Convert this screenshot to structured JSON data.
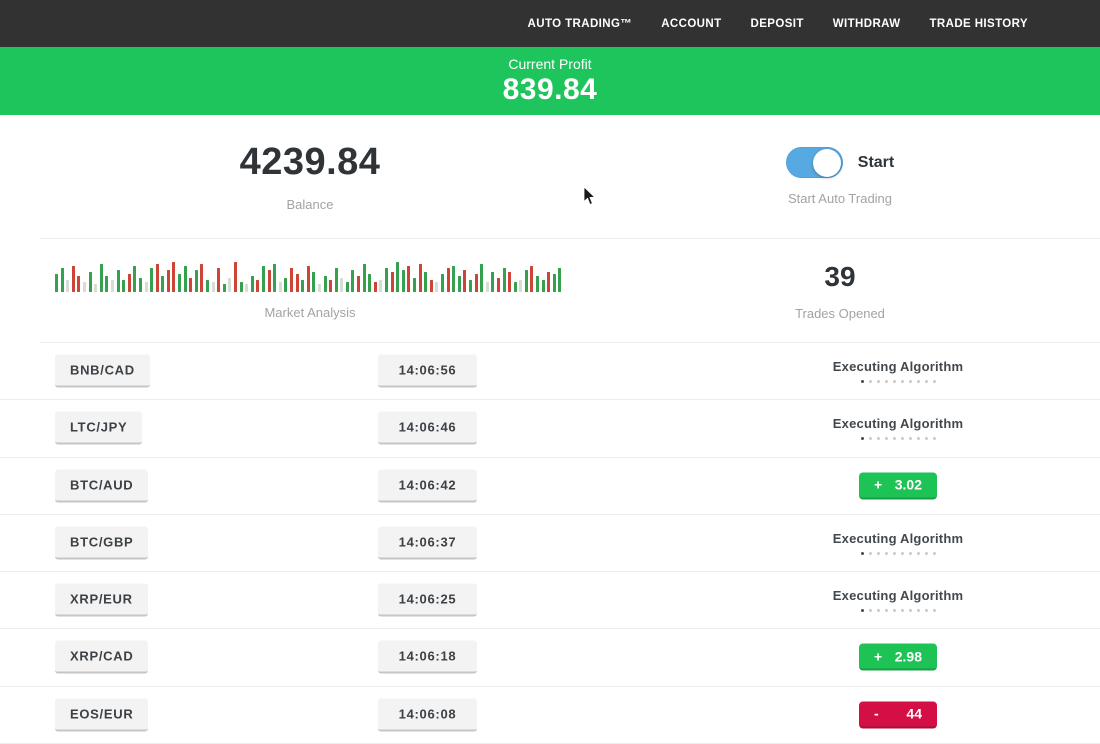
{
  "nav": {
    "items": [
      "AUTO TRADING™",
      "ACCOUNT",
      "DEPOSIT",
      "WITHDRAW",
      "TRADE HISTORY"
    ]
  },
  "profit_banner": {
    "label": "Current Profit",
    "value": "839.84"
  },
  "stats": {
    "balance": {
      "value": "4239.84",
      "label": "Balance"
    },
    "auto_trading": {
      "toggle_state": "on",
      "toggle_label": "Start",
      "caption": "Start Auto Trading"
    },
    "market": {
      "label": "Market Analysis"
    },
    "trades_opened": {
      "value": "39",
      "label": "Trades Opened"
    }
  },
  "market_analysis_bars": [
    [
      18,
      "g"
    ],
    [
      24,
      "g"
    ],
    [
      12,
      "p"
    ],
    [
      26,
      "r"
    ],
    [
      16,
      "r"
    ],
    [
      10,
      "p"
    ],
    [
      20,
      "g"
    ],
    [
      8,
      "p"
    ],
    [
      28,
      "g"
    ],
    [
      16,
      "g"
    ],
    [
      12,
      "p"
    ],
    [
      22,
      "g"
    ],
    [
      12,
      "g"
    ],
    [
      18,
      "r"
    ],
    [
      26,
      "g"
    ],
    [
      14,
      "g"
    ],
    [
      10,
      "p"
    ],
    [
      24,
      "g"
    ],
    [
      28,
      "r"
    ],
    [
      16,
      "g"
    ],
    [
      22,
      "r"
    ],
    [
      30,
      "r"
    ],
    [
      18,
      "g"
    ],
    [
      26,
      "g"
    ],
    [
      14,
      "r"
    ],
    [
      22,
      "g"
    ],
    [
      28,
      "r"
    ],
    [
      12,
      "g"
    ],
    [
      10,
      "p"
    ],
    [
      24,
      "r"
    ],
    [
      8,
      "g"
    ],
    [
      14,
      "p"
    ],
    [
      30,
      "r"
    ],
    [
      10,
      "g"
    ],
    [
      8,
      "p"
    ],
    [
      16,
      "g"
    ],
    [
      12,
      "r"
    ],
    [
      26,
      "g"
    ],
    [
      22,
      "r"
    ],
    [
      28,
      "g"
    ],
    [
      10,
      "p"
    ],
    [
      14,
      "g"
    ],
    [
      24,
      "r"
    ],
    [
      18,
      "r"
    ],
    [
      12,
      "g"
    ],
    [
      26,
      "r"
    ],
    [
      20,
      "g"
    ],
    [
      8,
      "p"
    ],
    [
      16,
      "g"
    ],
    [
      12,
      "r"
    ],
    [
      24,
      "g"
    ],
    [
      14,
      "p"
    ],
    [
      10,
      "g"
    ],
    [
      22,
      "g"
    ],
    [
      16,
      "r"
    ],
    [
      28,
      "g"
    ],
    [
      18,
      "g"
    ],
    [
      10,
      "r"
    ],
    [
      12,
      "p"
    ],
    [
      24,
      "g"
    ],
    [
      20,
      "r"
    ],
    [
      30,
      "g"
    ],
    [
      22,
      "g"
    ],
    [
      26,
      "r"
    ],
    [
      14,
      "g"
    ],
    [
      28,
      "r"
    ],
    [
      20,
      "g"
    ],
    [
      12,
      "r"
    ],
    [
      10,
      "p"
    ],
    [
      18,
      "g"
    ],
    [
      24,
      "r"
    ],
    [
      26,
      "g"
    ],
    [
      16,
      "g"
    ],
    [
      22,
      "r"
    ],
    [
      12,
      "g"
    ],
    [
      18,
      "r"
    ],
    [
      28,
      "g"
    ],
    [
      10,
      "p"
    ],
    [
      20,
      "g"
    ],
    [
      14,
      "r"
    ],
    [
      24,
      "g"
    ],
    [
      20,
      "r"
    ],
    [
      10,
      "g"
    ],
    [
      12,
      "p"
    ],
    [
      22,
      "g"
    ],
    [
      26,
      "r"
    ],
    [
      16,
      "g"
    ],
    [
      12,
      "g"
    ],
    [
      20,
      "r"
    ],
    [
      18,
      "g"
    ],
    [
      24,
      "g"
    ]
  ],
  "trades": {
    "executing_label": "Executing Algorithm",
    "status_dots": 10,
    "rows": [
      {
        "pair": "BNB/CAD",
        "time": "14:06:56",
        "status": "executing"
      },
      {
        "pair": "LTC/JPY",
        "time": "14:06:46",
        "status": "executing"
      },
      {
        "pair": "BTC/AUD",
        "time": "14:06:42",
        "status": "profit",
        "sign": "+",
        "amount": "3.02"
      },
      {
        "pair": "BTC/GBP",
        "time": "14:06:37",
        "status": "executing"
      },
      {
        "pair": "XRP/EUR",
        "time": "14:06:25",
        "status": "executing"
      },
      {
        "pair": "XRP/CAD",
        "time": "14:06:18",
        "status": "profit",
        "sign": "+",
        "amount": "2.98"
      },
      {
        "pair": "EOS/EUR",
        "time": "14:06:08",
        "status": "loss",
        "sign": "-",
        "amount": "44"
      }
    ]
  },
  "colors": {
    "nav_bg": "#323232",
    "banner_green": "#1ec45c",
    "profit_green": "#1dc355",
    "loss_red": "#d30f45",
    "toggle_blue": "#57aae1",
    "bar_green": "#35a14f",
    "bar_red": "#cd4437",
    "bar_pale": "#d6ddd6"
  }
}
